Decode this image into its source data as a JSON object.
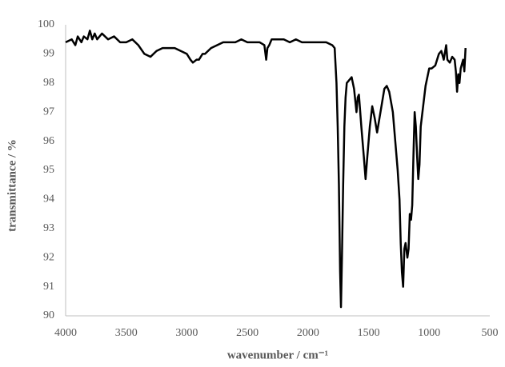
{
  "chart_data": {
    "type": "line",
    "xlabel": "wavenumber / cm⁻¹",
    "ylabel": "transmittance / %",
    "xlim": [
      4000,
      500
    ],
    "xticks": [
      4000,
      3500,
      3000,
      2500,
      2000,
      1500,
      1000,
      500
    ],
    "ylim": [
      90,
      100
    ],
    "yticks": [
      90,
      91,
      92,
      93,
      94,
      95,
      96,
      97,
      98,
      99,
      100
    ],
    "grid": false,
    "x": [
      4000,
      3950,
      3920,
      3900,
      3870,
      3850,
      3820,
      3800,
      3780,
      3760,
      3740,
      3700,
      3650,
      3600,
      3550,
      3500,
      3450,
      3400,
      3350,
      3300,
      3250,
      3200,
      3150,
      3100,
      3050,
      3000,
      2970,
      2950,
      2920,
      2900,
      2870,
      2850,
      2800,
      2750,
      2700,
      2650,
      2600,
      2550,
      2500,
      2450,
      2400,
      2360,
      2345,
      2335,
      2320,
      2300,
      2250,
      2200,
      2150,
      2100,
      2050,
      2000,
      1950,
      1900,
      1850,
      1800,
      1780,
      1765,
      1755,
      1745,
      1735,
      1728,
      1720,
      1710,
      1700,
      1690,
      1680,
      1660,
      1640,
      1620,
      1600,
      1590,
      1580,
      1560,
      1540,
      1525,
      1510,
      1490,
      1470,
      1450,
      1430,
      1410,
      1390,
      1370,
      1350,
      1330,
      1300,
      1280,
      1260,
      1245,
      1235,
      1225,
      1215,
      1205,
      1195,
      1180,
      1170,
      1160,
      1150,
      1140,
      1130,
      1120,
      1110,
      1100,
      1090,
      1080,
      1070,
      1050,
      1030,
      1000,
      980,
      950,
      920,
      900,
      880,
      860,
      850,
      830,
      810,
      790,
      780,
      770,
      760,
      750,
      740,
      720,
      710,
      700
    ],
    "series": [
      {
        "name": "spectrum",
        "color": "#000000",
        "values": [
          99.4,
          99.5,
          99.3,
          99.6,
          99.4,
          99.6,
          99.5,
          99.8,
          99.5,
          99.7,
          99.5,
          99.7,
          99.5,
          99.6,
          99.4,
          99.4,
          99.5,
          99.3,
          99.0,
          98.9,
          99.1,
          99.2,
          99.2,
          99.2,
          99.1,
          99.0,
          98.8,
          98.7,
          98.8,
          98.8,
          99.0,
          99.0,
          99.2,
          99.3,
          99.4,
          99.4,
          99.4,
          99.5,
          99.4,
          99.4,
          99.4,
          99.3,
          98.8,
          99.2,
          99.3,
          99.5,
          99.5,
          99.5,
          99.4,
          99.5,
          99.4,
          99.4,
          99.4,
          99.4,
          99.4,
          99.3,
          99.2,
          98.0,
          96.5,
          94.5,
          91.5,
          90.3,
          92.0,
          94.5,
          96.5,
          97.5,
          98.0,
          98.1,
          98.2,
          97.8,
          97.0,
          97.5,
          97.6,
          96.5,
          95.5,
          94.7,
          95.5,
          96.5,
          97.2,
          96.8,
          96.3,
          96.8,
          97.3,
          97.8,
          97.9,
          97.7,
          97.0,
          96.0,
          95.0,
          94.0,
          92.5,
          91.5,
          91.0,
          92.3,
          92.5,
          92.0,
          92.3,
          93.5,
          93.3,
          93.8,
          95.5,
          97.0,
          96.5,
          95.5,
          94.7,
          95.2,
          96.5,
          97.2,
          97.9,
          98.5,
          98.5,
          98.6,
          99.0,
          99.1,
          98.8,
          99.3,
          98.8,
          98.7,
          98.9,
          98.8,
          98.4,
          97.7,
          98.3,
          98.0,
          98.5,
          98.8,
          98.4,
          99.2
        ]
      }
    ]
  }
}
